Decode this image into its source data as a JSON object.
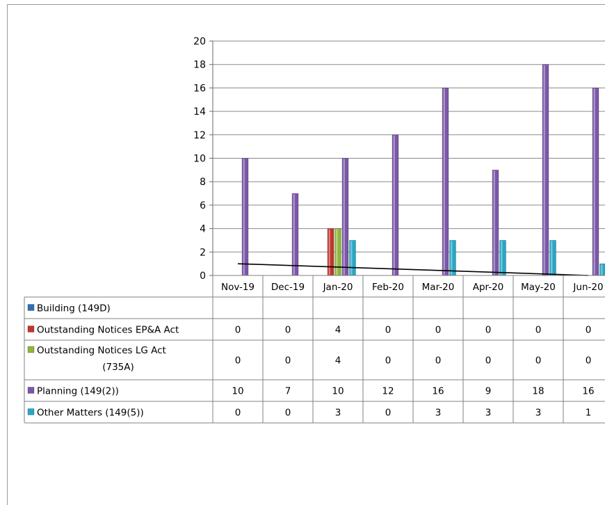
{
  "chart_data": {
    "type": "bar",
    "title": "",
    "xlabel": "",
    "ylabel": "",
    "ylim": [
      0,
      20
    ],
    "yticks": [
      0,
      2,
      4,
      6,
      8,
      10,
      12,
      14,
      16,
      18,
      20
    ],
    "grid": true,
    "legend": "data-table",
    "categories": [
      "Nov-19",
      "Dec-19",
      "Jan-20",
      "Feb-20",
      "Mar-20",
      "Apr-20",
      "May-20",
      "Jun-20"
    ],
    "series": [
      {
        "name": "Building (149D)",
        "label_lines": [
          "Building (149D)"
        ],
        "color": "#2f6fb3",
        "values": [
          null,
          null,
          null,
          null,
          null,
          null,
          null,
          null
        ],
        "cells": [
          "",
          "",
          "",
          "",
          "",
          "",
          "",
          ""
        ]
      },
      {
        "name": "Outstanding Notices EP&A Act",
        "label_lines": [
          "Outstanding Notices EP&A Act"
        ],
        "color": "#c0362e",
        "values": [
          0,
          0,
          4,
          0,
          0,
          0,
          0,
          0
        ],
        "cells": [
          "0",
          "0",
          "4",
          "0",
          "0",
          "0",
          "0",
          "0"
        ]
      },
      {
        "name": "Outstanding Notices LG Act (735A)",
        "label_lines": [
          "Outstanding Notices LG Act",
          "(735A)"
        ],
        "color": "#8fb53a",
        "values": [
          0,
          0,
          4,
          0,
          0,
          0,
          0,
          0
        ],
        "cells": [
          "0",
          "0",
          "4",
          "0",
          "0",
          "0",
          "0",
          "0"
        ]
      },
      {
        "name": "Planning (149(2))",
        "label_lines": [
          "Planning (149(2))"
        ],
        "color": "#7b57a8",
        "values": [
          10,
          7,
          10,
          12,
          16,
          9,
          18,
          16
        ],
        "cells": [
          "10",
          "7",
          "10",
          "12",
          "16",
          "9",
          "18",
          "16"
        ]
      },
      {
        "name": "Other Matters (149(5))",
        "label_lines": [
          "Other Matters (149(5))"
        ],
        "color": "#27a7c6",
        "values": [
          0,
          0,
          3,
          0,
          3,
          3,
          3,
          1
        ],
        "cells": [
          "0",
          "0",
          "3",
          "0",
          "3",
          "3",
          "3",
          "1"
        ]
      }
    ],
    "trendline": {
      "series": "Planning (149(2))",
      "from_category": "Nov-19",
      "to_category": "Jun-20",
      "y_start": 1,
      "y_end": 0,
      "color": "#000000"
    }
  }
}
